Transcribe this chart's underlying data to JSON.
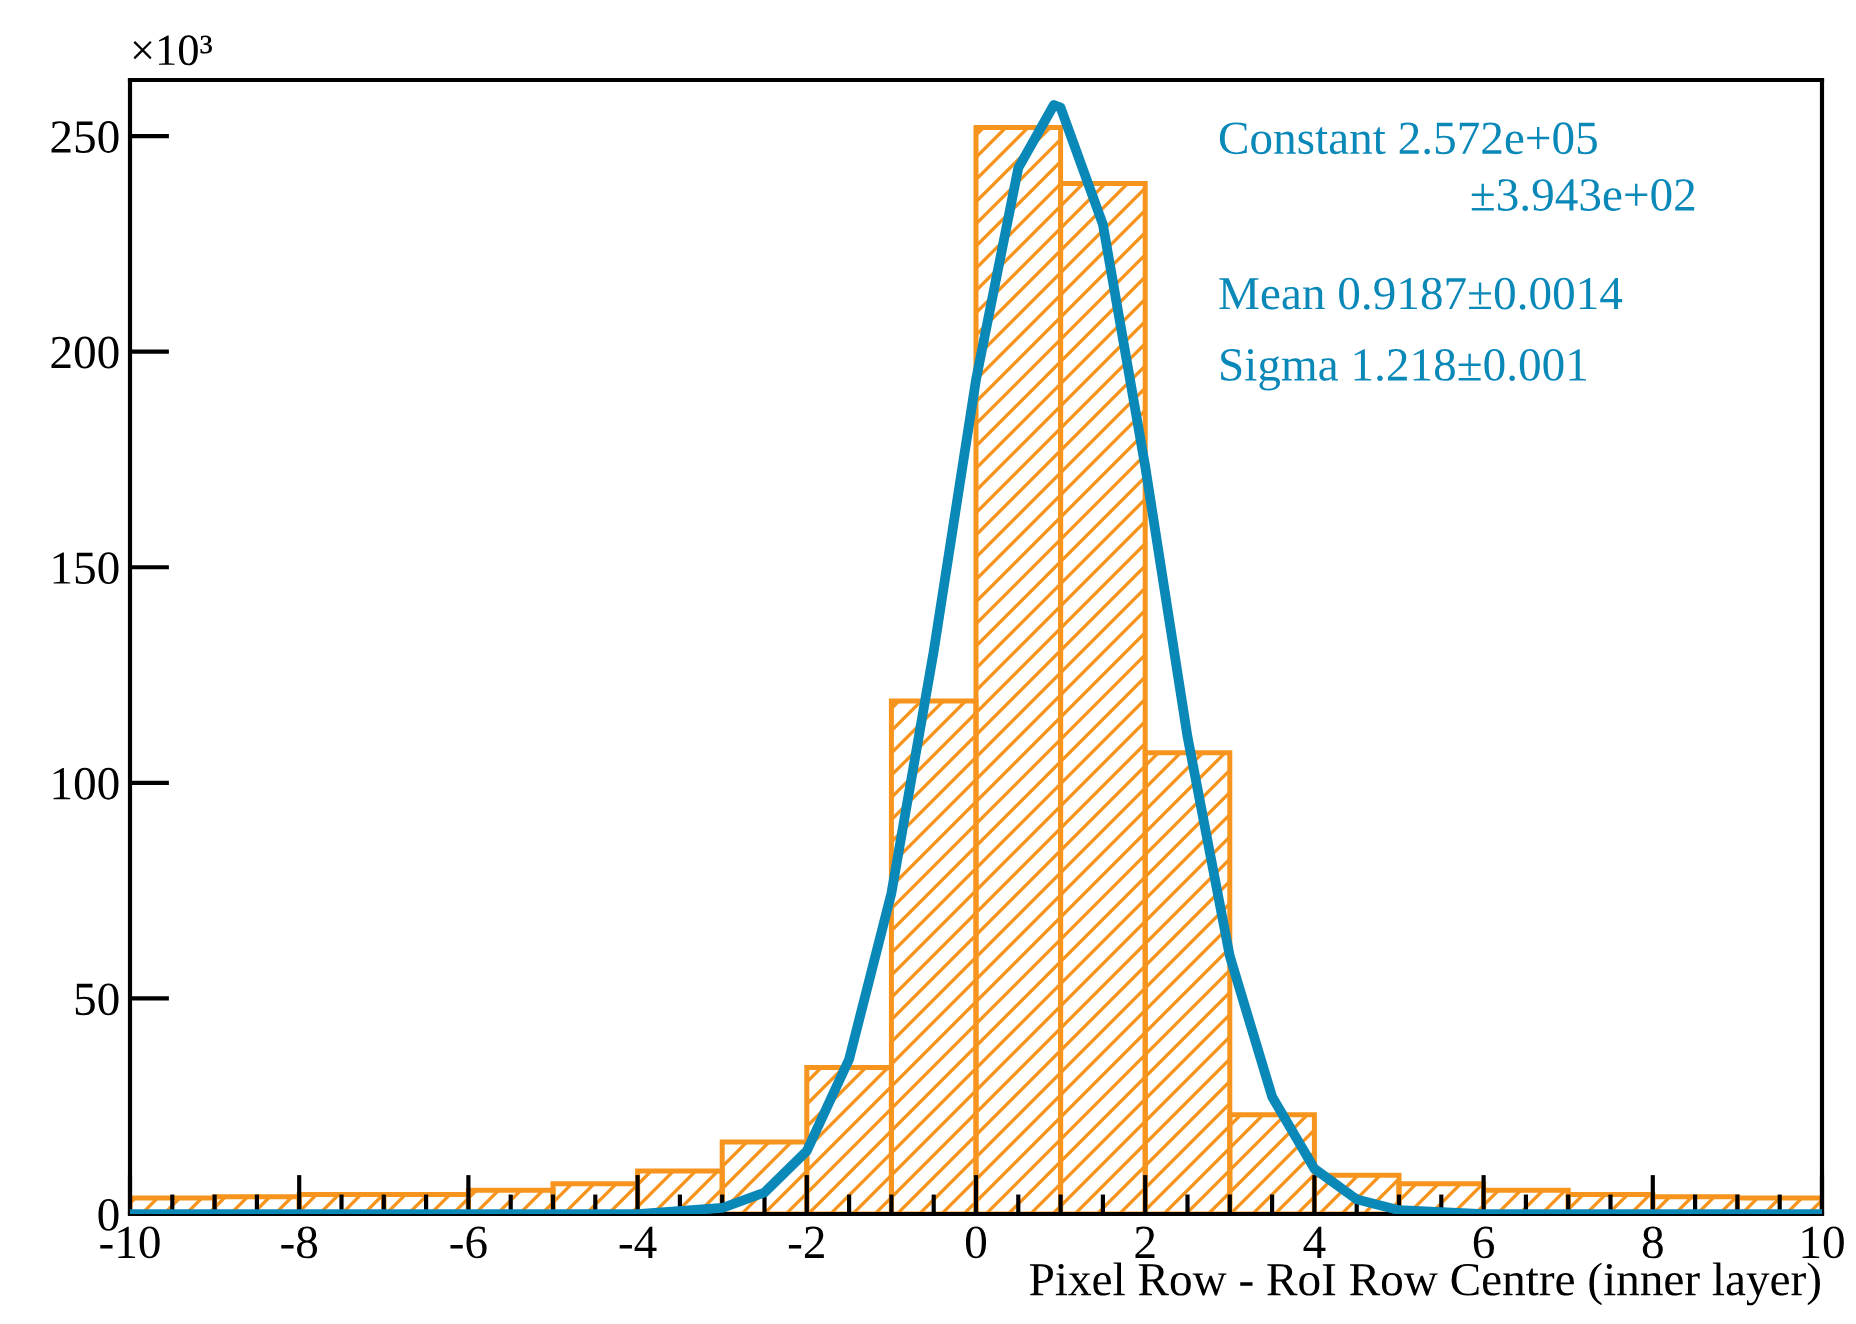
{
  "chart_data": {
    "type": "histogram",
    "xlabel": "Pixel Row - RoI Row Centre (inner layer)",
    "annotations": [
      "×10³",
      "Constant 2.572e+05",
      "±3.943e+02",
      "Mean 0.9187±0.0014",
      "Sigma 1.218±0.001"
    ],
    "bins": [
      -10,
      -9,
      -8,
      -7,
      -6,
      -5,
      -4,
      -3,
      -2,
      -1,
      0,
      1,
      2,
      3,
      4,
      5,
      6,
      7,
      8,
      9,
      10
    ],
    "series": [
      {
        "color": "#f7941d",
        "values": [
          3.7,
          4,
          4.5,
          4.5,
          5.5,
          7,
          10,
          16.7,
          34,
          119,
          252,
          239,
          107,
          23,
          9,
          7,
          5.5,
          4.5,
          4,
          3.7
        ]
      },
      {
        "type": "line",
        "color": "#0a88b8",
        "x": [
          -10,
          -4,
          -3,
          -2.5,
          -2,
          -1.5,
          -1,
          -0.5,
          0,
          0.5,
          0.92,
          1,
          1.5,
          2,
          2.5,
          3,
          3.5,
          4,
          4.5,
          5,
          6,
          10
        ],
        "values": [
          0,
          0,
          1.4,
          5,
          14.6,
          35.9,
          74.4,
          130.5,
          193.5,
          242.6,
          257.2,
          256.6,
          229.5,
          173.4,
          110.7,
          59.8,
          27.2,
          10.5,
          3.4,
          0.9,
          0,
          0
        ]
      }
    ],
    "xlim": [
      -10,
      10
    ],
    "xticks": [
      -10,
      -8,
      -6,
      -4,
      -2,
      0,
      2,
      4,
      6,
      8,
      10
    ],
    "ylim": [
      0,
      263
    ],
    "yticks": [
      0,
      50,
      100,
      150,
      200,
      250
    ]
  }
}
